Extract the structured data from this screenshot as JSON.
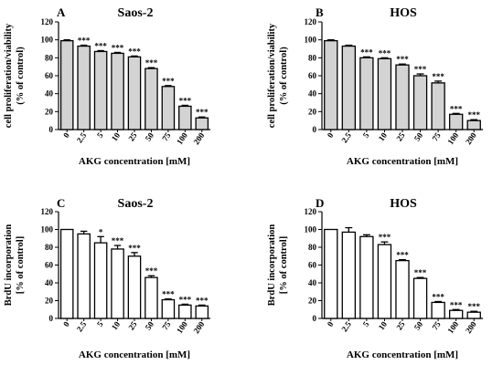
{
  "figure": {
    "panels": [
      {
        "letter": "A",
        "title": "Saos-2",
        "ylabel_line1": "cell proliferation/viability",
        "ylabel_line2": "(% of control)",
        "xlabel": "AKG concentration [mM]"
      },
      {
        "letter": "B",
        "title": "HOS",
        "ylabel_line1": "cell proliferation/viability",
        "ylabel_line2": "(% of control)",
        "xlabel": "AKG concentration [mM]"
      },
      {
        "letter": "C",
        "title": "Saos-2",
        "ylabel_line1": "BrdU incorporation",
        "ylabel_line2": "[% of control]",
        "xlabel": "AKG concentration [mM]"
      },
      {
        "letter": "D",
        "title": "HOS",
        "ylabel_line1": "BrdU incorporation",
        "ylabel_line2": "[% of control]",
        "xlabel": "AKG concentration [mM]"
      }
    ]
  },
  "chart_data": [
    {
      "type": "bar",
      "title": "Saos-2",
      "xlabel": "AKG concentration [mM]",
      "ylabel": "cell proliferation/viability (% of control)",
      "ylim": [
        0,
        120
      ],
      "yticks": [
        0,
        20,
        40,
        60,
        80,
        100,
        120
      ],
      "categories": [
        "0",
        "2.5",
        "5",
        "10",
        "25",
        "50",
        "75",
        "100",
        "200"
      ],
      "values": [
        99,
        93,
        87,
        85,
        81,
        68,
        48,
        26,
        13
      ],
      "errors": [
        1,
        1,
        1,
        1,
        1,
        1,
        1,
        1,
        1
      ],
      "significance": [
        "",
        "***",
        "***",
        "***",
        "***",
        "***",
        "***",
        "***",
        "***"
      ],
      "bar_color": "#d3d3d3"
    },
    {
      "type": "bar",
      "title": "HOS",
      "xlabel": "AKG concentration [mM]",
      "ylabel": "cell proliferation/viability (% of control)",
      "ylim": [
        0,
        120
      ],
      "yticks": [
        0,
        20,
        40,
        60,
        80,
        100,
        120
      ],
      "categories": [
        "0",
        "2.5",
        "5",
        "10",
        "25",
        "50",
        "75",
        "100",
        "200"
      ],
      "values": [
        99,
        93,
        80,
        79,
        72,
        60,
        52,
        17,
        10
      ],
      "errors": [
        1,
        1,
        1,
        1,
        1,
        2,
        2,
        1,
        1
      ],
      "significance": [
        "",
        "",
        "***",
        "***",
        "***",
        "***",
        "***",
        "***",
        "***"
      ],
      "bar_color": "#d3d3d3"
    },
    {
      "type": "bar",
      "title": "Saos-2",
      "xlabel": "AKG concentration [mM]",
      "ylabel": "BrdU incorporation [% of control]",
      "ylim": [
        0,
        120
      ],
      "yticks": [
        0,
        20,
        40,
        60,
        80,
        100,
        120
      ],
      "categories": [
        "0",
        "2.5",
        "5",
        "10",
        "25",
        "50",
        "75",
        "100",
        "200"
      ],
      "values": [
        100,
        95,
        85,
        78,
        70,
        46,
        21,
        15,
        14
      ],
      "errors": [
        0,
        3,
        7,
        4,
        4,
        2,
        1,
        1,
        1
      ],
      "significance": [
        "",
        "",
        "*",
        "***",
        "***",
        "***",
        "***",
        "***",
        "***"
      ],
      "bar_color": "#ffffff"
    },
    {
      "type": "bar",
      "title": "HOS",
      "xlabel": "AKG concentration [mM]",
      "ylabel": "BrdU incorporation [% of control]",
      "ylim": [
        0,
        120
      ],
      "yticks": [
        0,
        20,
        40,
        60,
        80,
        100,
        120
      ],
      "categories": [
        "0",
        "2.5",
        "5",
        "10",
        "25",
        "50",
        "75",
        "100",
        "200"
      ],
      "values": [
        100,
        97,
        92,
        83,
        65,
        45,
        18,
        9,
        7
      ],
      "errors": [
        0,
        5,
        2,
        3,
        1,
        1,
        1,
        1,
        1
      ],
      "significance": [
        "",
        "",
        "",
        "***",
        "***",
        "***",
        "***",
        "***",
        "***"
      ],
      "bar_color": "#ffffff"
    }
  ]
}
